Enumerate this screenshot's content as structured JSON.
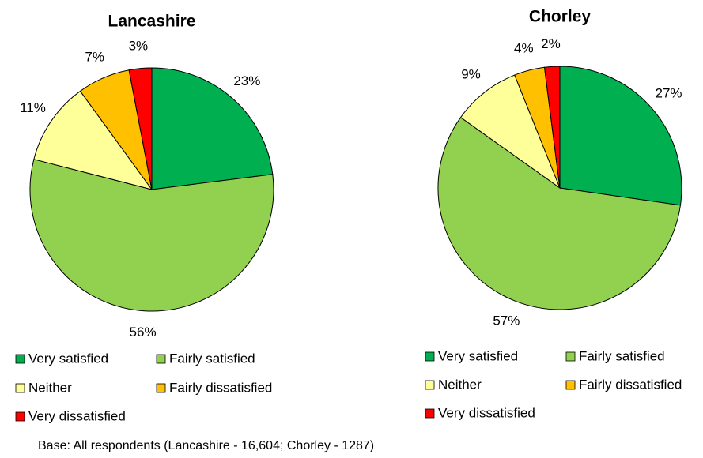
{
  "chart_data": [
    {
      "type": "pie",
      "title": "Lancashire",
      "categories": [
        "Very satisfied",
        "Fairly satisfied",
        "Neither",
        "Fairly dissatisfied",
        "Very dissatisfied"
      ],
      "values": [
        23,
        56,
        11,
        7,
        3
      ],
      "value_labels": [
        "23%",
        "56%",
        "11%",
        "7%",
        "3%"
      ],
      "colors": [
        "#00b050",
        "#92d050",
        "#ffff99",
        "#ffc000",
        "#ff0000"
      ]
    },
    {
      "type": "pie",
      "title": "Chorley",
      "categories": [
        "Very satisfied",
        "Fairly satisfied",
        "Neither",
        "Fairly dissatisfied",
        "Very dissatisfied"
      ],
      "values": [
        27,
        57,
        9,
        4,
        2
      ],
      "value_labels": [
        "27%",
        "57%",
        "9%",
        "4%",
        "2%"
      ],
      "colors": [
        "#00b050",
        "#92d050",
        "#ffff99",
        "#ffc000",
        "#ff0000"
      ]
    }
  ],
  "note": "Base: All respondents (Lancashire - 16,604; Chorley - 1287)"
}
